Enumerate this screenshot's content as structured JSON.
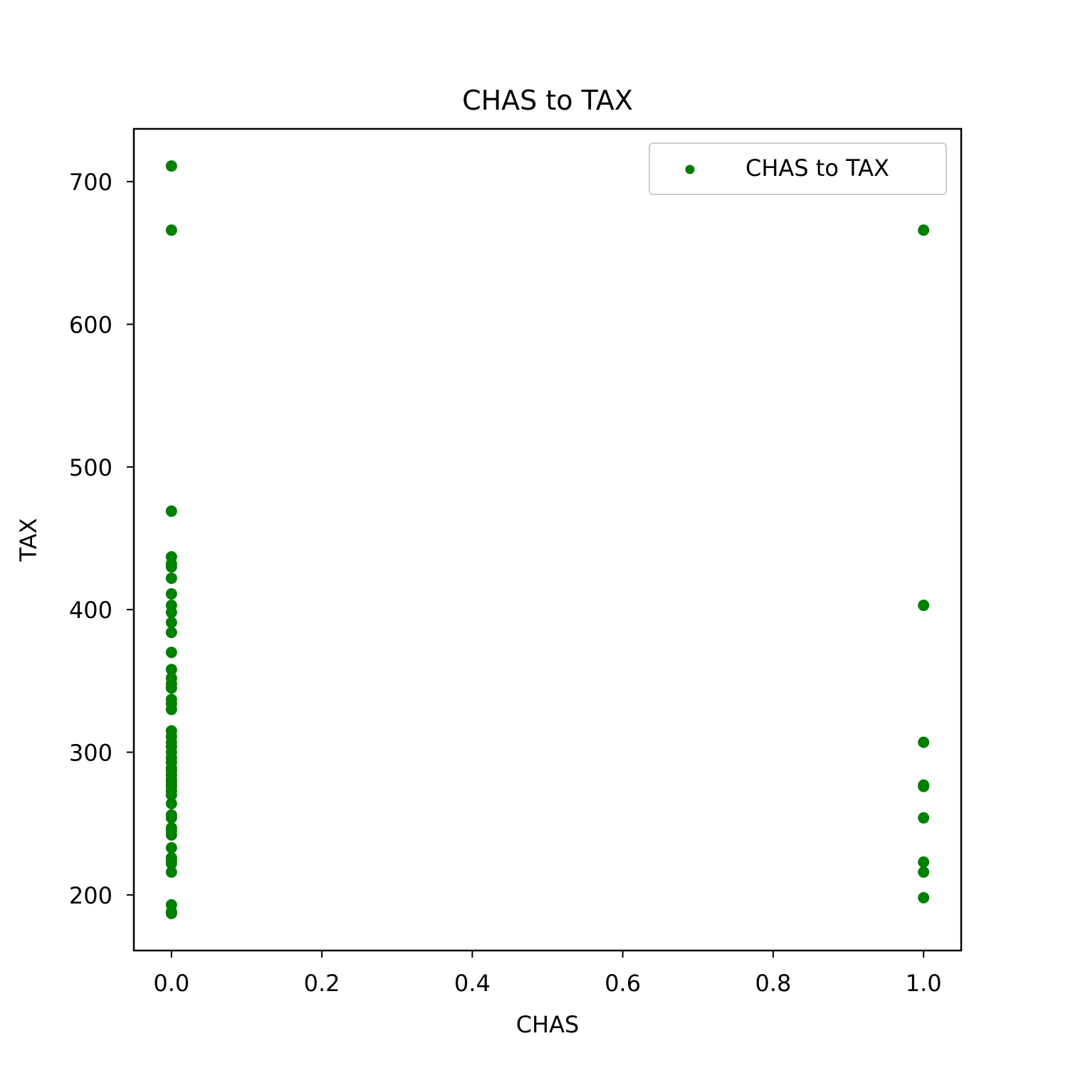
{
  "chart_data": {
    "type": "scatter",
    "title": "CHAS to TAX",
    "xlabel": "CHAS",
    "ylabel": "TAX",
    "xlim": [
      -0.05,
      1.05
    ],
    "ylim": [
      161,
      737
    ],
    "x_ticks": [
      0.0,
      0.2,
      0.4,
      0.6,
      0.8,
      1.0
    ],
    "x_tick_labels": [
      "0.0",
      "0.2",
      "0.4",
      "0.6",
      "0.8",
      "1.0"
    ],
    "y_ticks": [
      200,
      300,
      400,
      500,
      600,
      700
    ],
    "y_tick_labels": [
      "200",
      "300",
      "400",
      "500",
      "600",
      "700"
    ],
    "grid": false,
    "legend": {
      "position": "top-right",
      "entries": [
        "CHAS to TAX"
      ]
    },
    "series": [
      {
        "name": "CHAS to TAX",
        "color": "#008000",
        "points": [
          [
            0,
            711
          ],
          [
            0,
            666
          ],
          [
            0,
            469
          ],
          [
            0,
            437
          ],
          [
            0,
            432
          ],
          [
            0,
            430
          ],
          [
            0,
            422
          ],
          [
            0,
            411
          ],
          [
            0,
            403
          ],
          [
            0,
            398
          ],
          [
            0,
            391
          ],
          [
            0,
            384
          ],
          [
            0,
            370
          ],
          [
            0,
            358
          ],
          [
            0,
            352
          ],
          [
            0,
            348
          ],
          [
            0,
            345
          ],
          [
            0,
            337
          ],
          [
            0,
            334
          ],
          [
            0,
            330
          ],
          [
            0,
            315
          ],
          [
            0,
            311
          ],
          [
            0,
            307
          ],
          [
            0,
            304
          ],
          [
            0,
            300
          ],
          [
            0,
            296
          ],
          [
            0,
            293
          ],
          [
            0,
            289
          ],
          [
            0,
            287
          ],
          [
            0,
            284
          ],
          [
            0,
            281
          ],
          [
            0,
            279
          ],
          [
            0,
            277
          ],
          [
            0,
            276
          ],
          [
            0,
            273
          ],
          [
            0,
            270
          ],
          [
            0,
            264
          ],
          [
            0,
            256
          ],
          [
            0,
            254
          ],
          [
            0,
            247
          ],
          [
            0,
            245
          ],
          [
            0,
            242
          ],
          [
            0,
            233
          ],
          [
            0,
            226
          ],
          [
            0,
            224
          ],
          [
            0,
            222
          ],
          [
            0,
            216
          ],
          [
            0,
            193
          ],
          [
            0,
            188
          ],
          [
            0,
            187
          ],
          [
            1,
            666
          ],
          [
            1,
            403
          ],
          [
            1,
            307
          ],
          [
            1,
            277
          ],
          [
            1,
            276
          ],
          [
            1,
            254
          ],
          [
            1,
            223
          ],
          [
            1,
            216
          ],
          [
            1,
            198
          ]
        ]
      }
    ]
  }
}
